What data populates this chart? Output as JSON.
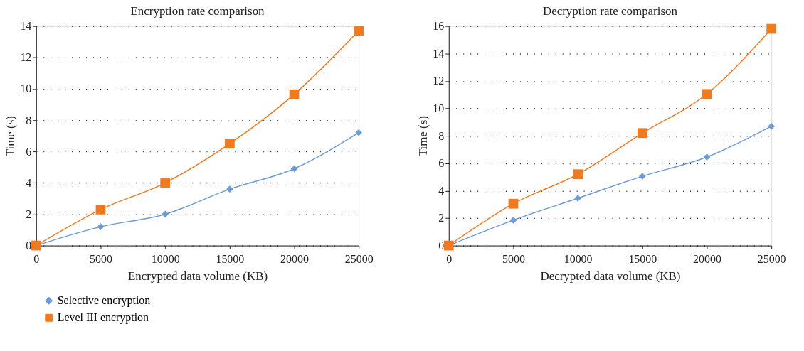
{
  "chart_data": [
    {
      "type": "line",
      "title": "Encryption rate comparison",
      "xlabel": "Encrypted data volume (KB)",
      "ylabel": "Time (s)",
      "x": [
        0,
        5000,
        10000,
        15000,
        20000,
        25000
      ],
      "xlim": [
        0,
        25000
      ],
      "xticks": [
        0,
        5000,
        10000,
        15000,
        20000,
        25000
      ],
      "ylim": [
        0,
        14
      ],
      "yticks": [
        0,
        2,
        4,
        6,
        8,
        10,
        12,
        14
      ],
      "grid": "y",
      "legend": "bottom left",
      "series": [
        {
          "name": "Selective encryption",
          "color": "#6c9bd5",
          "marker": "diamond",
          "values": [
            0,
            1.2,
            2.0,
            3.6,
            4.9,
            7.2
          ]
        },
        {
          "name": "Level III encryption",
          "color": "#ee7a22",
          "marker": "square",
          "values": [
            0,
            2.3,
            4.0,
            6.5,
            9.65,
            13.7
          ]
        }
      ]
    },
    {
      "type": "line",
      "title": "Decryption rate comparison",
      "xlabel": "Decrypted data volume (KB)",
      "ylabel": "Time (s)",
      "x": [
        0,
        5000,
        10000,
        15000,
        20000,
        25000
      ],
      "xlim": [
        0,
        25000
      ],
      "xticks": [
        0,
        5000,
        10000,
        15000,
        20000,
        25000
      ],
      "ylim": [
        0,
        16
      ],
      "yticks": [
        0,
        2,
        4,
        6,
        8,
        10,
        12,
        14,
        16
      ],
      "grid": "y",
      "legend": false,
      "series": [
        {
          "name": "Selective encryption",
          "color": "#6c9bd5",
          "marker": "diamond",
          "values": [
            0,
            1.85,
            3.45,
            5.05,
            6.45,
            8.7
          ]
        },
        {
          "name": "Level III encryption",
          "color": "#ee7a22",
          "marker": "square",
          "values": [
            0,
            3.05,
            5.2,
            8.2,
            11.05,
            15.8
          ]
        }
      ]
    }
  ]
}
